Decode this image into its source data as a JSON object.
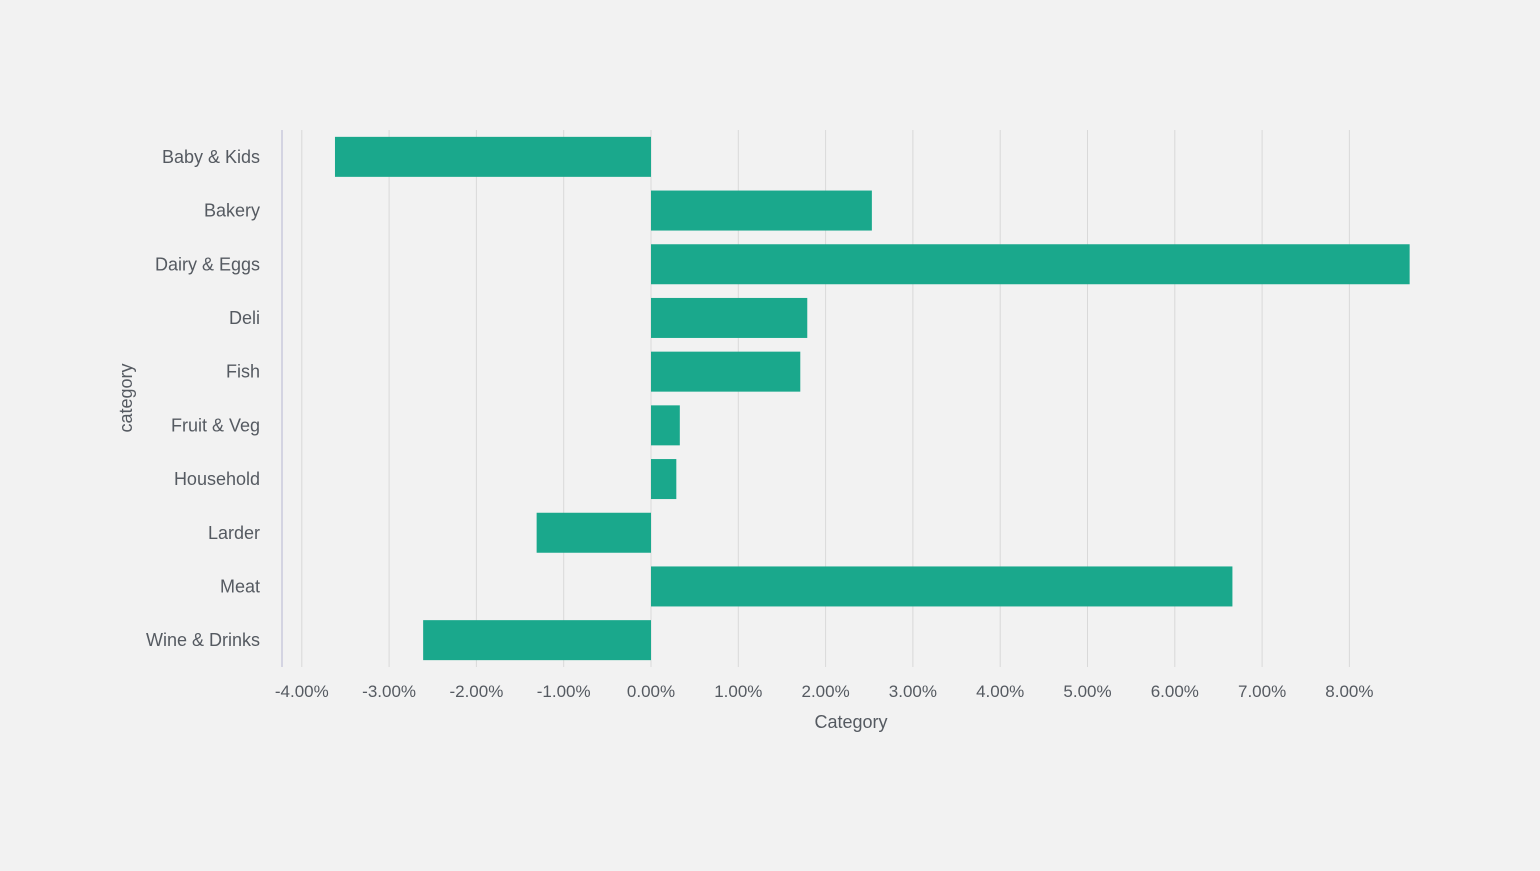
{
  "chart_data": {
    "type": "bar",
    "orientation": "horizontal",
    "categories": [
      "Baby & Kids",
      "Bakery",
      "Dairy & Eggs",
      "Deli",
      "Fish",
      "Fruit & Veg",
      "Household",
      "Larder",
      "Meat",
      "Wine & Drinks"
    ],
    "values": [
      -3.62,
      2.53,
      8.69,
      1.79,
      1.71,
      0.33,
      0.29,
      -1.31,
      6.66,
      -2.61
    ],
    "value_format": "percent",
    "xlabel": "Category",
    "ylabel": "category",
    "xlim": [
      -4.24,
      8.7
    ],
    "x_ticks": [
      "-4.00%",
      "-3.00%",
      "-2.00%",
      "-1.00%",
      "0.00%",
      "1.00%",
      "2.00%",
      "3.00%",
      "4.00%",
      "5.00%",
      "6.00%",
      "7.00%",
      "8.00%"
    ],
    "grid": true,
    "legend": "none",
    "colors": {
      "bar": "#1aa88c",
      "grid": "#d9d9d9",
      "axis": "#c9c9dd",
      "text": "#555a61",
      "background": "#f2f2f2"
    }
  }
}
